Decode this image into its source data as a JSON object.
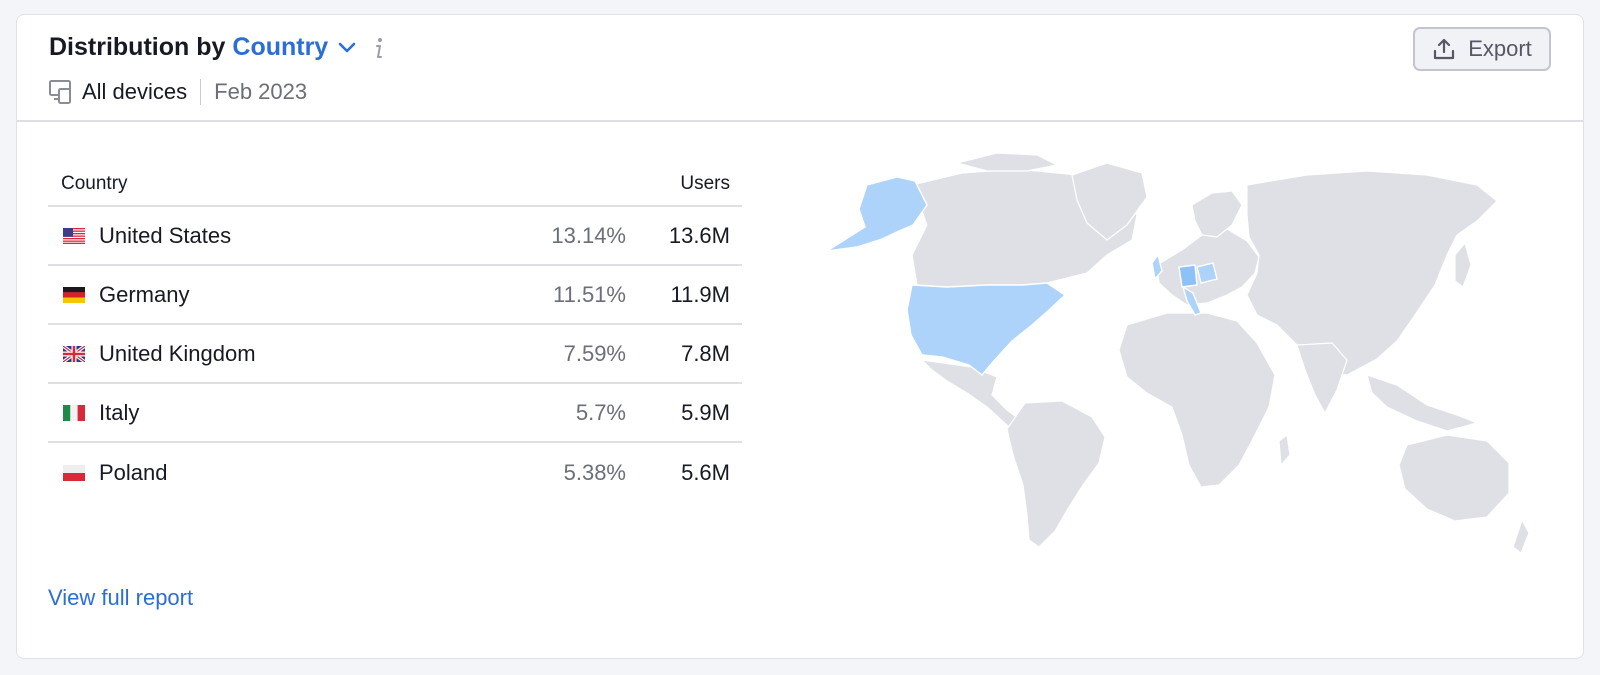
{
  "header": {
    "title_prefix": "Distribution by",
    "title_dimension": "Country",
    "devices": "All devices",
    "date": "Feb 2023",
    "export_label": "Export"
  },
  "table": {
    "columns": [
      "Country",
      "Users"
    ],
    "rows": [
      {
        "country": "United States",
        "share": "13.14%",
        "users": "13.6M",
        "flag": "flag-us-icon"
      },
      {
        "country": "Germany",
        "share": "11.51%",
        "users": "11.9M",
        "flag": "flag-de-icon"
      },
      {
        "country": "United Kingdom",
        "share": "7.59%",
        "users": "7.8M",
        "flag": "flag-gb-icon"
      },
      {
        "country": "Italy",
        "share": "5.7%",
        "users": "5.9M",
        "flag": "flag-it-icon"
      },
      {
        "country": "Poland",
        "share": "5.38%",
        "users": "5.6M",
        "flag": "flag-pl-icon"
      }
    ]
  },
  "footer": {
    "view_full_report": "View full report"
  },
  "map": {
    "highlighted_countries": [
      "United States",
      "Germany",
      "United Kingdom",
      "Italy",
      "Poland"
    ],
    "colors": {
      "highlight": "#aed3fa",
      "highlight_strong": "#8ec2f6",
      "land": "#dfe0e6",
      "accent": "#2b6ed5"
    }
  }
}
